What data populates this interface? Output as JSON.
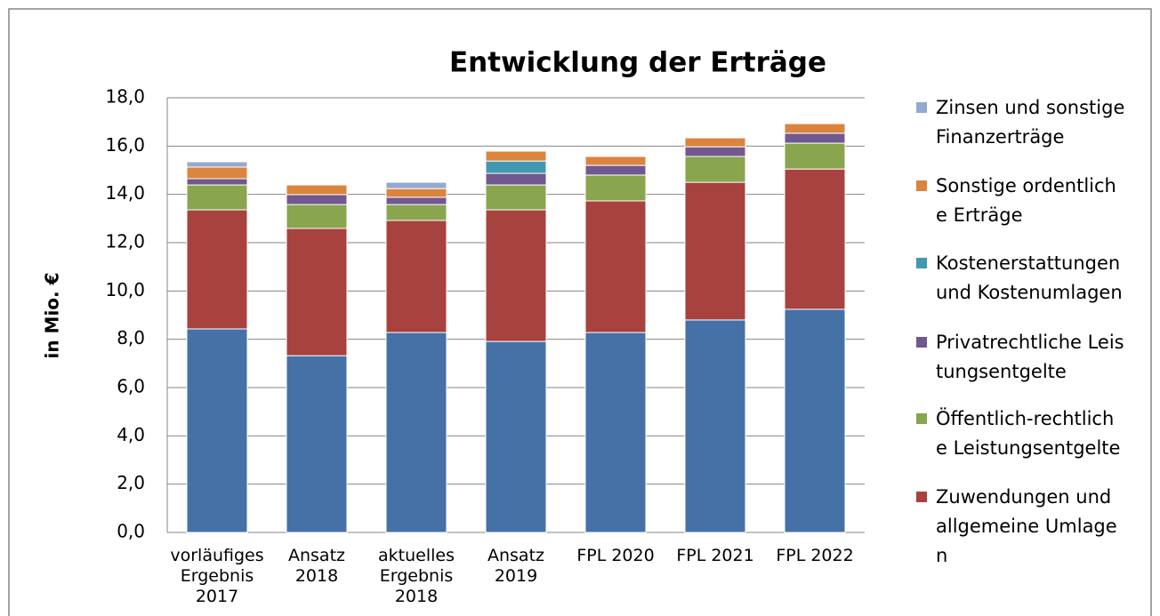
{
  "chart_data": {
    "type": "stacked_bar",
    "title": "Entwicklung der Erträge",
    "y_label": "in Mio. €",
    "categories": [
      "vorläufiges Ergebnis 2017",
      "Ansatz 2018",
      "aktuelles Ergebnis 2018",
      "Ansatz 2019",
      "FPL 2020",
      "FPL 2021",
      "FPL 2022"
    ],
    "series": [
      {
        "color": "#4571a7",
        "values": [
          8.43,
          7.32,
          8.28,
          7.91,
          8.28,
          8.8,
          9.24
        ]
      },
      {
        "name": "Zuwendungen und allgemeine Umlagen",
        "color": "#a8423f",
        "values": [
          4.93,
          5.27,
          4.64,
          5.45,
          5.45,
          5.7,
          5.81
        ]
      },
      {
        "name": "Öffentlich-rechtliche Leistungsentgelte",
        "color": "#89a54e",
        "values": [
          1.03,
          0.99,
          0.66,
          1.03,
          1.07,
          1.07,
          1.07
        ]
      },
      {
        "name": "Privatrechtliche Leistungsentgelte",
        "color": "#71588f",
        "values": [
          0.26,
          0.41,
          0.3,
          0.48,
          0.4,
          0.4,
          0.41
        ]
      },
      {
        "name": "Kostenerstattungen und Kostenumlagen",
        "color": "#4198af",
        "values": [
          0,
          0,
          0,
          0.51,
          0,
          0,
          0
        ]
      },
      {
        "name": "Sonstige ordentliche Erträge",
        "color": "#db843d",
        "values": [
          0.48,
          0.4,
          0.36,
          0.41,
          0.37,
          0.37,
          0.4
        ]
      },
      {
        "name": "Zinsen und sonstige Finanzerträge",
        "color": "#93a9cf",
        "values": [
          0.22,
          0,
          0.26,
          0,
          0,
          0,
          0
        ]
      }
    ],
    "ylim": [
      0,
      18
    ],
    "yticks": [
      {
        "value": 0,
        "label": "0,0"
      },
      {
        "value": 2,
        "label": "2,0"
      },
      {
        "value": 4,
        "label": "4,0"
      },
      {
        "value": 6,
        "label": "6,0"
      },
      {
        "value": 8,
        "label": "8,0"
      },
      {
        "value": 10,
        "label": "10,0"
      },
      {
        "value": 12,
        "label": "12,0"
      },
      {
        "value": 14,
        "label": "14,0"
      },
      {
        "value": 16,
        "label": "16,0"
      },
      {
        "value": 18,
        "label": "18,0"
      }
    ],
    "grid": true,
    "legend": "right"
  }
}
